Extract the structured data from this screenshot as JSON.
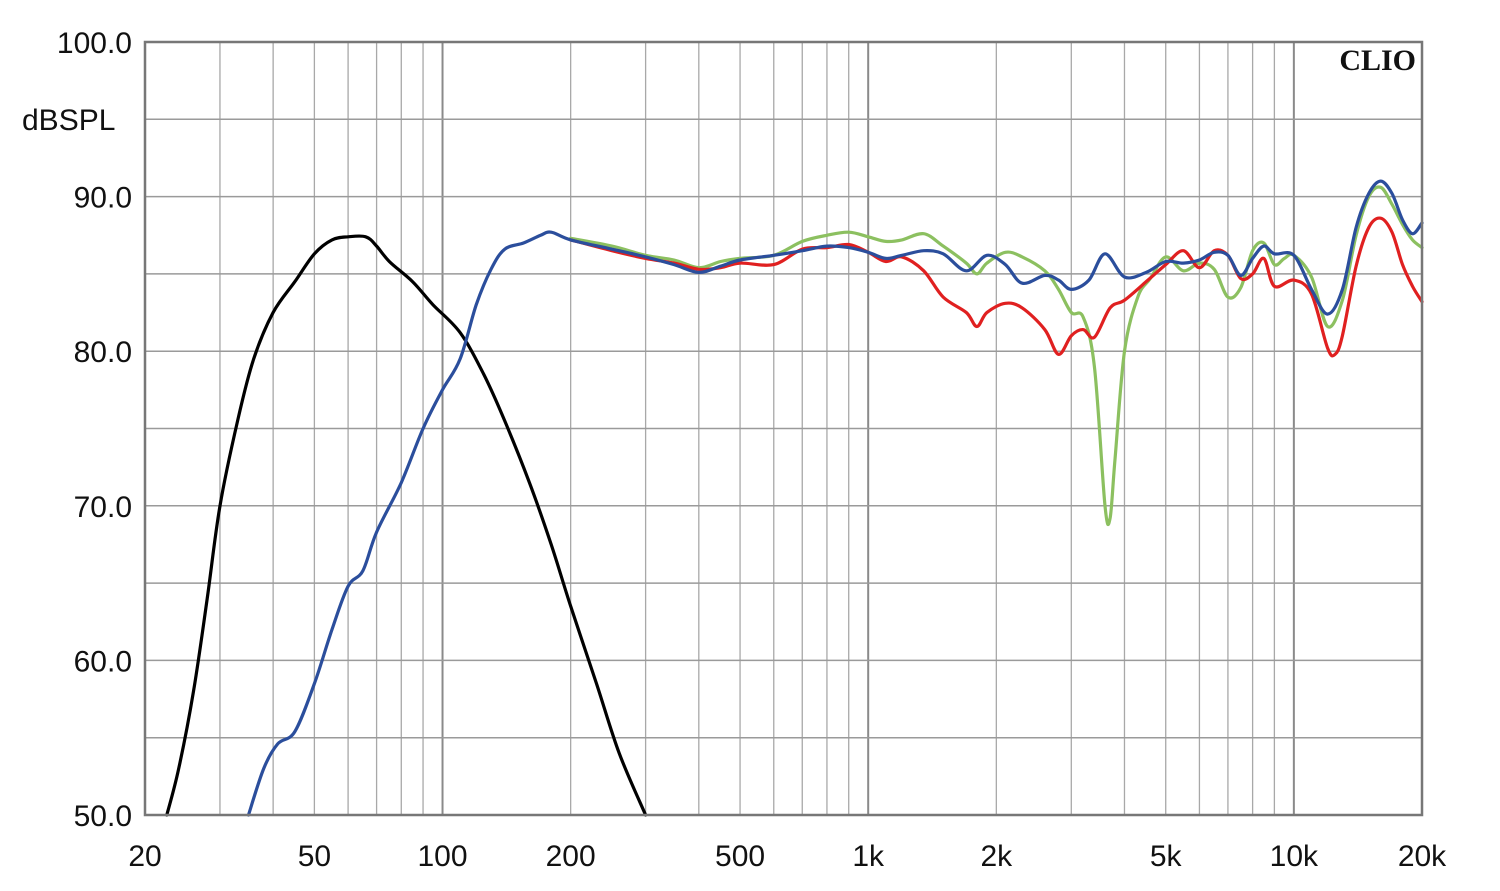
{
  "chart_data": {
    "type": "line",
    "brand": "CLIO",
    "ylabel": "dBSPL",
    "xscale": "log",
    "xlim": [
      20,
      20000
    ],
    "ylim": [
      50,
      100
    ],
    "grid": true,
    "x_ticks": [
      {
        "value": 20,
        "label": "20"
      },
      {
        "value": 50,
        "label": "50"
      },
      {
        "value": 100,
        "label": "100"
      },
      {
        "value": 200,
        "label": "200"
      },
      {
        "value": 500,
        "label": "500"
      },
      {
        "value": 1000,
        "label": "1k"
      },
      {
        "value": 2000,
        "label": "2k"
      },
      {
        "value": 5000,
        "label": "5k"
      },
      {
        "value": 10000,
        "label": "10k"
      },
      {
        "value": 20000,
        "label": "20k"
      }
    ],
    "y_ticks": [
      {
        "value": 100,
        "label": "100.0"
      },
      {
        "value": 90,
        "label": "90.0"
      },
      {
        "value": 80,
        "label": "80.0"
      },
      {
        "value": 70,
        "label": "70.0"
      },
      {
        "value": 60,
        "label": "60.0"
      },
      {
        "value": 50,
        "label": "50.0"
      }
    ],
    "series": [
      {
        "color": "#000000",
        "points": [
          [
            22.5,
            50
          ],
          [
            24,
            53
          ],
          [
            26,
            58
          ],
          [
            28,
            64
          ],
          [
            30,
            70
          ],
          [
            33,
            75.5
          ],
          [
            36,
            79.5
          ],
          [
            40,
            82.5
          ],
          [
            45,
            84.5
          ],
          [
            50,
            86.3
          ],
          [
            55,
            87.2
          ],
          [
            60,
            87.4
          ],
          [
            66,
            87.4
          ],
          [
            70,
            86.8
          ],
          [
            75,
            85.8
          ],
          [
            85,
            84.5
          ],
          [
            95,
            83
          ],
          [
            110,
            81.2
          ],
          [
            125,
            78.5
          ],
          [
            140,
            75.5
          ],
          [
            160,
            71.5
          ],
          [
            180,
            67.5
          ],
          [
            200,
            63.5
          ],
          [
            230,
            58.5
          ],
          [
            260,
            54
          ],
          [
            300,
            50
          ]
        ]
      },
      {
        "color": "#2b4e9c",
        "points": [
          [
            35,
            50
          ],
          [
            38,
            53
          ],
          [
            41,
            54.6
          ],
          [
            45,
            55.4
          ],
          [
            50,
            58.5
          ],
          [
            55,
            62
          ],
          [
            60,
            64.8
          ],
          [
            65,
            65.8
          ],
          [
            70,
            68.3
          ],
          [
            80,
            71.5
          ],
          [
            90,
            75
          ],
          [
            100,
            77.5
          ],
          [
            110,
            79.5
          ],
          [
            120,
            83
          ],
          [
            130,
            85.3
          ],
          [
            140,
            86.6
          ],
          [
            155,
            87
          ],
          [
            170,
            87.5
          ],
          [
            180,
            87.7
          ],
          [
            200,
            87.2
          ],
          [
            250,
            86.6
          ],
          [
            300,
            86.1
          ],
          [
            350,
            85.6
          ],
          [
            400,
            85.1
          ],
          [
            450,
            85.5
          ],
          [
            500,
            85.9
          ],
          [
            600,
            86.2
          ],
          [
            700,
            86.5
          ],
          [
            800,
            86.8
          ],
          [
            900,
            86.7
          ],
          [
            1000,
            86.4
          ],
          [
            1100,
            86
          ],
          [
            1200,
            86.2
          ],
          [
            1350,
            86.5
          ],
          [
            1500,
            86.3
          ],
          [
            1700,
            85.2
          ],
          [
            1900,
            86.2
          ],
          [
            2100,
            85.6
          ],
          [
            2300,
            84.4
          ],
          [
            2600,
            84.9
          ],
          [
            2800,
            84.6
          ],
          [
            3000,
            84
          ],
          [
            3300,
            84.6
          ],
          [
            3600,
            86.3
          ],
          [
            4000,
            84.8
          ],
          [
            4500,
            85.1
          ],
          [
            5000,
            85.8
          ],
          [
            5500,
            85.7
          ],
          [
            6000,
            85.9
          ],
          [
            6500,
            86.4
          ],
          [
            7000,
            86.2
          ],
          [
            7500,
            84.9
          ],
          [
            8000,
            86
          ],
          [
            8500,
            86.8
          ],
          [
            9000,
            86.3
          ],
          [
            10000,
            86.2
          ],
          [
            11000,
            84
          ],
          [
            12000,
            82.4
          ],
          [
            13000,
            84
          ],
          [
            14000,
            88
          ],
          [
            15000,
            90.2
          ],
          [
            16000,
            91
          ],
          [
            17000,
            90.2
          ],
          [
            18000,
            88.5
          ],
          [
            19000,
            87.6
          ],
          [
            20000,
            88.3
          ]
        ]
      },
      {
        "color": "#e02020",
        "points": [
          [
            200,
            87.2
          ],
          [
            250,
            86.5
          ],
          [
            300,
            86
          ],
          [
            350,
            85.7
          ],
          [
            400,
            85.3
          ],
          [
            450,
            85.4
          ],
          [
            500,
            85.7
          ],
          [
            600,
            85.6
          ],
          [
            700,
            86.6
          ],
          [
            800,
            86.7
          ],
          [
            900,
            86.9
          ],
          [
            1000,
            86.4
          ],
          [
            1100,
            85.8
          ],
          [
            1200,
            86.1
          ],
          [
            1350,
            85.2
          ],
          [
            1500,
            83.5
          ],
          [
            1700,
            82.5
          ],
          [
            1800,
            81.6
          ],
          [
            1900,
            82.5
          ],
          [
            2100,
            83.1
          ],
          [
            2300,
            82.8
          ],
          [
            2600,
            81.4
          ],
          [
            2800,
            79.8
          ],
          [
            3000,
            81
          ],
          [
            3200,
            81.4
          ],
          [
            3400,
            80.9
          ],
          [
            3700,
            82.8
          ],
          [
            4000,
            83.3
          ],
          [
            4500,
            84.5
          ],
          [
            5000,
            85.6
          ],
          [
            5500,
            86.5
          ],
          [
            6000,
            85.4
          ],
          [
            6500,
            86.5
          ],
          [
            7000,
            86.2
          ],
          [
            7500,
            84.7
          ],
          [
            8000,
            85
          ],
          [
            8500,
            86
          ],
          [
            9000,
            84.2
          ],
          [
            10000,
            84.6
          ],
          [
            11000,
            83.7
          ],
          [
            12000,
            80.2
          ],
          [
            12500,
            79.8
          ],
          [
            13000,
            81
          ],
          [
            14000,
            85.5
          ],
          [
            15000,
            88
          ],
          [
            16000,
            88.6
          ],
          [
            17000,
            87.7
          ],
          [
            18000,
            85.6
          ],
          [
            19000,
            84.2
          ],
          [
            20000,
            83.2
          ]
        ]
      },
      {
        "color": "#8cc060",
        "points": [
          [
            200,
            87.3
          ],
          [
            250,
            86.8
          ],
          [
            300,
            86.2
          ],
          [
            350,
            85.9
          ],
          [
            400,
            85.4
          ],
          [
            450,
            85.8
          ],
          [
            500,
            86
          ],
          [
            600,
            86.2
          ],
          [
            700,
            87.1
          ],
          [
            800,
            87.5
          ],
          [
            900,
            87.7
          ],
          [
            1000,
            87.4
          ],
          [
            1100,
            87.1
          ],
          [
            1200,
            87.2
          ],
          [
            1350,
            87.6
          ],
          [
            1500,
            86.8
          ],
          [
            1700,
            85.7
          ],
          [
            1800,
            85
          ],
          [
            1900,
            85.7
          ],
          [
            2100,
            86.4
          ],
          [
            2300,
            86.1
          ],
          [
            2600,
            85.2
          ],
          [
            2800,
            84
          ],
          [
            3000,
            82.5
          ],
          [
            3200,
            82.2
          ],
          [
            3400,
            79
          ],
          [
            3600,
            70
          ],
          [
            3700,
            69.2
          ],
          [
            3800,
            73
          ],
          [
            4000,
            80
          ],
          [
            4300,
            83.5
          ],
          [
            4600,
            84.7
          ],
          [
            5000,
            86.1
          ],
          [
            5500,
            85.2
          ],
          [
            6000,
            85.7
          ],
          [
            6500,
            85.3
          ],
          [
            7000,
            83.5
          ],
          [
            7500,
            84.1
          ],
          [
            8000,
            86.5
          ],
          [
            8500,
            87
          ],
          [
            9000,
            85.6
          ],
          [
            9500,
            86
          ],
          [
            10000,
            86.2
          ],
          [
            11000,
            84.8
          ],
          [
            12000,
            81.6
          ],
          [
            13000,
            83.3
          ],
          [
            14000,
            87.5
          ],
          [
            15000,
            90
          ],
          [
            16000,
            90.6
          ],
          [
            17000,
            89.5
          ],
          [
            18000,
            88.2
          ],
          [
            19000,
            87.2
          ],
          [
            20000,
            86.7
          ]
        ]
      }
    ]
  }
}
